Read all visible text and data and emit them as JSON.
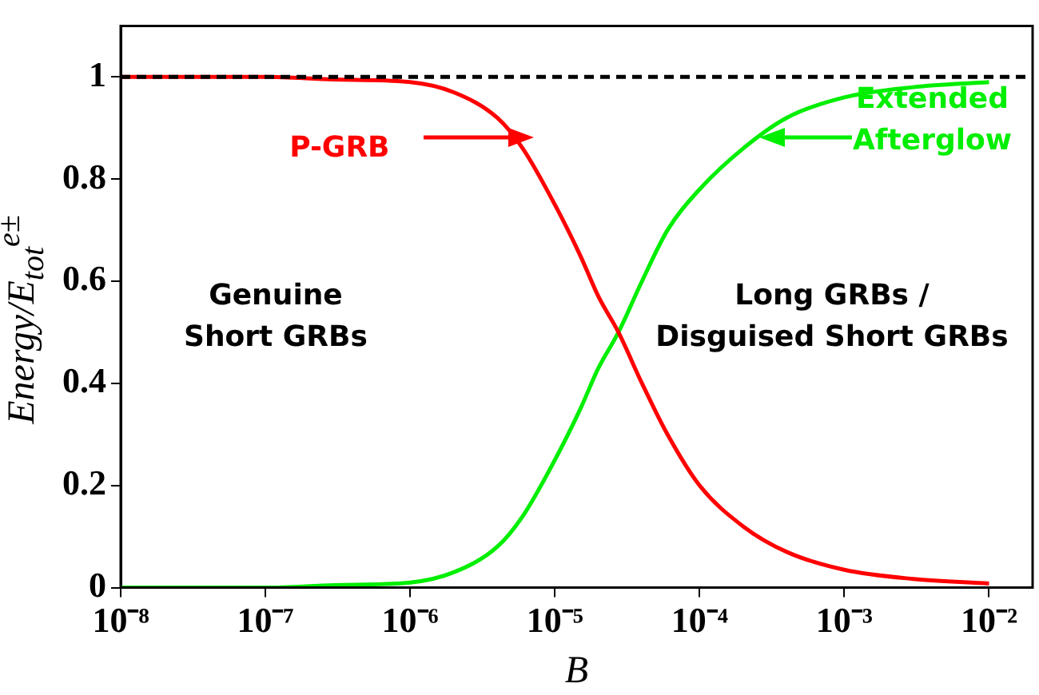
{
  "chart_data": {
    "type": "line",
    "xlabel": "B",
    "ylabel": "Energy/E$_{tot}$$^{e±}$",
    "log": "x",
    "xlim": [
      1e-08,
      0.02
    ],
    "ylim": [
      0,
      1.1
    ],
    "xticks": [
      {
        "value": 1e-08,
        "label": "10⁻⁸"
      },
      {
        "value": 1e-07,
        "label": "10⁻⁷"
      },
      {
        "value": 1e-06,
        "label": "10⁻⁶"
      },
      {
        "value": 1e-05,
        "label": "10⁻⁵"
      },
      {
        "value": 0.0001,
        "label": "10⁻⁴"
      },
      {
        "value": 0.001,
        "label": "10⁻³"
      },
      {
        "value": 0.01,
        "label": "10⁻²"
      }
    ],
    "yticks": [
      0,
      0.2,
      0.4,
      0.6,
      0.8,
      1
    ],
    "grid": false,
    "legend": "top right",
    "marker": "none",
    "line_style": "solid",
    "x": [
      1e-08,
      1e-07,
      3e-07,
      1e-06,
      2e-06,
      4e-06,
      6e-06,
      1e-05,
      1.5e-05,
      2e-05,
      2.75e-05,
      4e-05,
      6e-05,
      0.0001,
      0.0002,
      0.0004,
      0.001,
      0.003,
      0.01
    ],
    "series": [
      {
        "name": "P-GRB",
        "color": "#ff0000",
        "values": [
          1,
          1,
          0.995,
          0.99,
          0.97,
          0.92,
          0.86,
          0.75,
          0.65,
          0.57,
          0.5,
          0.4,
          0.3,
          0.2,
          0.12,
          0.07,
          0.035,
          0.017,
          0.008
        ]
      },
      {
        "name": "Extended Afterglow",
        "color": "#00ee00",
        "values": [
          0,
          0,
          0.005,
          0.01,
          0.03,
          0.08,
          0.14,
          0.25,
          0.35,
          0.43,
          0.5,
          0.6,
          0.7,
          0.78,
          0.86,
          0.92,
          0.96,
          0.98,
          0.99
        ]
      }
    ],
    "ref_lines": [
      {
        "axis": "y",
        "value": 1,
        "color": "#000000",
        "line_style": "dashed"
      }
    ],
    "annotations": [
      "Genuine\nShort GRBs",
      "Long GRBs /\nDisguised Short GRBs"
    ]
  }
}
